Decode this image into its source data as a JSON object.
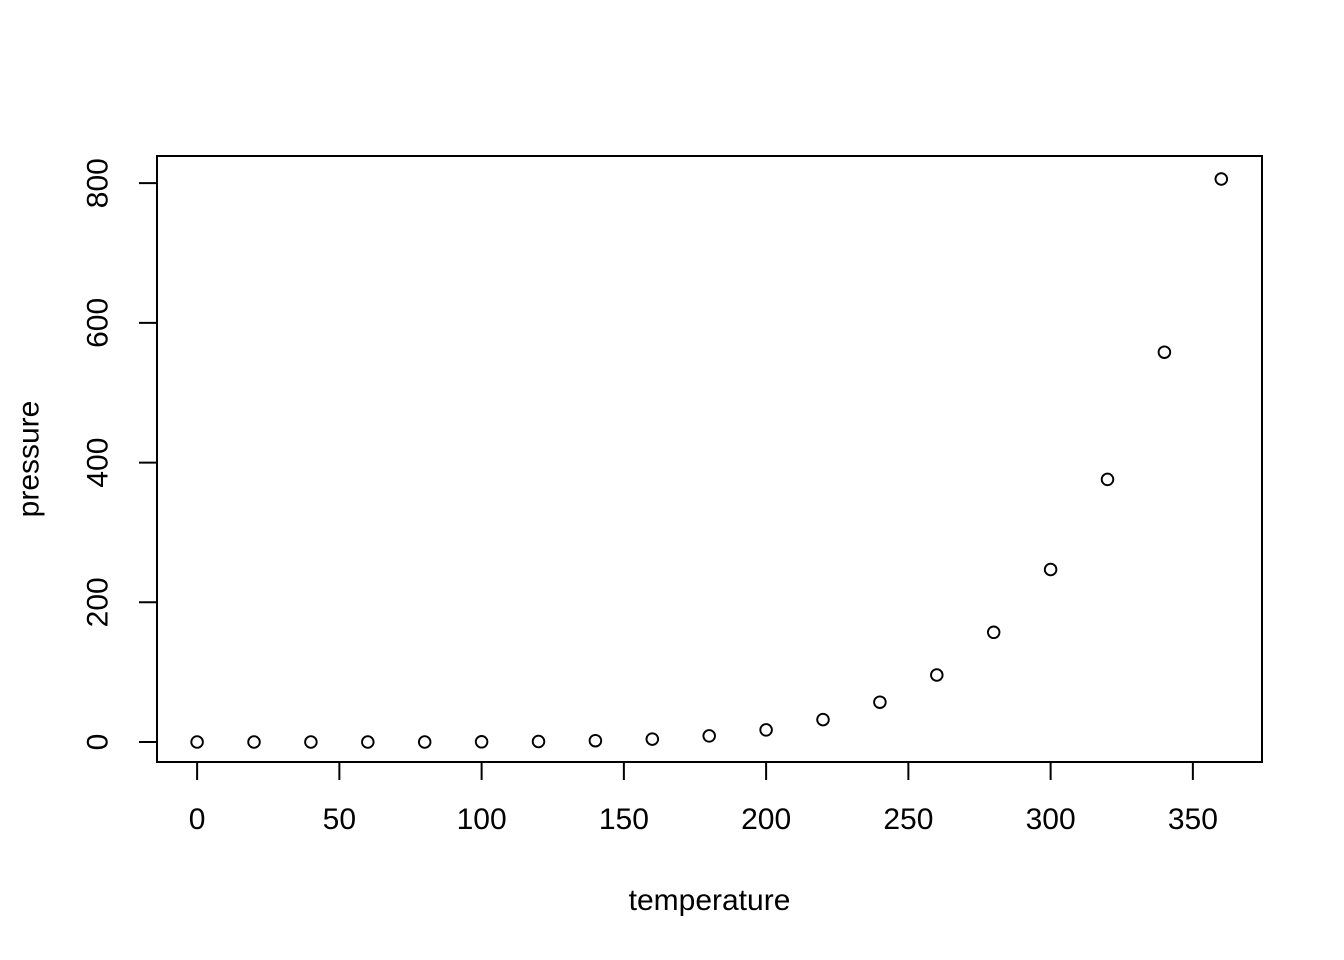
{
  "figure": {
    "background": "#ffffff",
    "stroke_color": "#000000"
  },
  "chart_data": {
    "type": "scatter",
    "title": "",
    "xlabel": "temperature",
    "ylabel": "pressure",
    "x_tick_labels": [
      "0",
      "50",
      "100",
      "150",
      "200",
      "250",
      "300",
      "350"
    ],
    "y_tick_labels": [
      "0",
      "200",
      "400",
      "600",
      "800"
    ],
    "xlim": [
      -14.1,
      374.3
    ],
    "ylim": [
      -28.6,
      838.9
    ],
    "grid": false,
    "legend": "none",
    "marker": "open-circle",
    "series": [
      {
        "name": "pressure",
        "x": [
          0,
          20,
          40,
          60,
          80,
          100,
          120,
          140,
          160,
          180,
          200,
          220,
          240,
          260,
          280,
          300,
          320,
          340,
          360
        ],
        "y": [
          0.0002,
          0.0012,
          0.006,
          0.03,
          0.09,
          0.27,
          0.75,
          1.85,
          4.2,
          8.8,
          17.3,
          32.1,
          57,
          96,
          157,
          247,
          376,
          558,
          806
        ]
      }
    ]
  }
}
